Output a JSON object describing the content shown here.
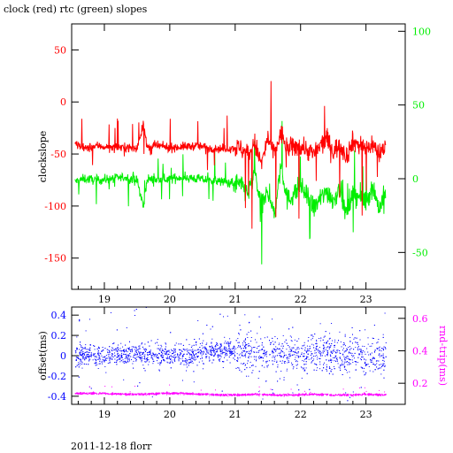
{
  "title": "clock (red) rtc (green) slopes",
  "footer": "2011-12-18 florr",
  "colors": {
    "clock": "#ff0000",
    "rtc": "#00ee00",
    "offset": "#0000ff",
    "rndtrip": "#ff00ff",
    "axis": "#000000"
  },
  "chart_data": [
    {
      "type": "line",
      "title": "clock (red) rtc (green) slopes",
      "xlabel": "",
      "ylabel": "clockslope",
      "y2label": "",
      "xlim": [
        18.5,
        23.6
      ],
      "ylim": [
        -180,
        75
      ],
      "y2lim": [
        -75,
        105
      ],
      "x_ticks": [
        19,
        20,
        21,
        22,
        23
      ],
      "x_tick_labels": [
        "19",
        "20",
        "21",
        "22",
        "23"
      ],
      "y_ticks": [
        50,
        0,
        -50,
        -100,
        -150
      ],
      "y_tick_labels": [
        "50",
        "0",
        "-50",
        "-100",
        "-150"
      ],
      "y2_ticks": [
        100,
        50,
        0,
        -50
      ],
      "y2_tick_labels": [
        "100",
        "50",
        "0",
        "-50"
      ],
      "grid": false,
      "series": [
        {
          "name": "clock",
          "axis": "left",
          "color": "#ff0000",
          "x": [
            18.55,
            18.7,
            18.9,
            19.1,
            19.3,
            19.5,
            19.6,
            19.65,
            19.8,
            20.0,
            20.2,
            20.4,
            20.6,
            20.8,
            21.0,
            21.1,
            21.2,
            21.3,
            21.4,
            21.5,
            21.6,
            21.7,
            21.8,
            22.0,
            22.2,
            22.4,
            22.5,
            22.6,
            22.7,
            22.8,
            23.0,
            23.1,
            23.2,
            23.3
          ],
          "y": [
            -40,
            -45,
            -42,
            -44,
            -43,
            -45,
            -20,
            -44,
            -42,
            -44,
            -43,
            -42,
            -44,
            -45,
            -44,
            -45,
            -50,
            -40,
            -60,
            -35,
            -50,
            -30,
            -45,
            -42,
            -50,
            -35,
            -48,
            -40,
            -52,
            -38,
            -45,
            -40,
            -50,
            -42
          ]
        },
        {
          "name": "rtc",
          "axis": "right",
          "color": "#00ee00",
          "x": [
            18.55,
            18.7,
            18.9,
            19.1,
            19.3,
            19.5,
            19.6,
            19.65,
            19.8,
            20.0,
            20.2,
            20.4,
            20.6,
            20.8,
            21.0,
            21.1,
            21.2,
            21.3,
            21.4,
            21.5,
            21.6,
            21.7,
            21.8,
            22.0,
            22.2,
            22.4,
            22.5,
            22.6,
            22.7,
            22.8,
            23.0,
            23.1,
            23.2,
            23.3
          ],
          "y": [
            -2,
            0,
            -1,
            0,
            1,
            -1,
            -20,
            0,
            -1,
            0,
            1,
            0,
            -1,
            -2,
            -3,
            -5,
            -10,
            5,
            -20,
            -8,
            -25,
            10,
            -15,
            -5,
            -20,
            -8,
            -15,
            -5,
            -25,
            -10,
            -15,
            -5,
            -20,
            -10
          ]
        }
      ]
    },
    {
      "type": "scatter",
      "xlabel": "",
      "ylabel": "offset(ms)",
      "y2label": "rnd-trip(ms)",
      "xlim": [
        18.5,
        23.6
      ],
      "ylim": [
        -0.48,
        0.48
      ],
      "y2lim": [
        0.07,
        0.67
      ],
      "x_ticks": [
        19,
        20,
        21,
        22,
        23
      ],
      "x_tick_labels": [
        "19",
        "20",
        "21",
        "22",
        "23"
      ],
      "y_ticks": [
        0.4,
        0.2,
        0,
        -0.2,
        -0.4
      ],
      "y_tick_labels": [
        "0.4",
        "0.2",
        "0",
        "-0.2",
        "-0.4"
      ],
      "y2_ticks": [
        0.6,
        0.4,
        0.2
      ],
      "y2_tick_labels": [
        "0.6",
        "0.4",
        "0.2"
      ],
      "grid": false,
      "series": [
        {
          "name": "offset",
          "axis": "left",
          "color": "#0000ff",
          "x": [
            18.55,
            18.8,
            19.0,
            19.3,
            19.6,
            19.9,
            20.2,
            20.5,
            20.8,
            21.0,
            21.3,
            21.6,
            21.9,
            22.2,
            22.5,
            22.8,
            23.0,
            23.3
          ],
          "y": [
            0.0,
            0.02,
            0.0,
            0.03,
            0.01,
            0.02,
            0.0,
            0.04,
            0.05,
            0.06,
            0.02,
            0.05,
            0.0,
            0.05,
            0.0,
            0.02,
            -0.02,
            0.0
          ]
        },
        {
          "name": "rnd-trip",
          "axis": "right",
          "color": "#ff00ff",
          "x": [
            18.55,
            18.8,
            19.0,
            19.3,
            19.6,
            19.9,
            20.2,
            20.5,
            20.8,
            21.0,
            21.3,
            21.6,
            21.9,
            22.2,
            22.5,
            22.8,
            23.0,
            23.3
          ],
          "y": [
            0.14,
            0.14,
            0.14,
            0.135,
            0.135,
            0.14,
            0.14,
            0.135,
            0.13,
            0.13,
            0.135,
            0.13,
            0.13,
            0.135,
            0.13,
            0.13,
            0.135,
            0.13
          ]
        }
      ]
    }
  ]
}
